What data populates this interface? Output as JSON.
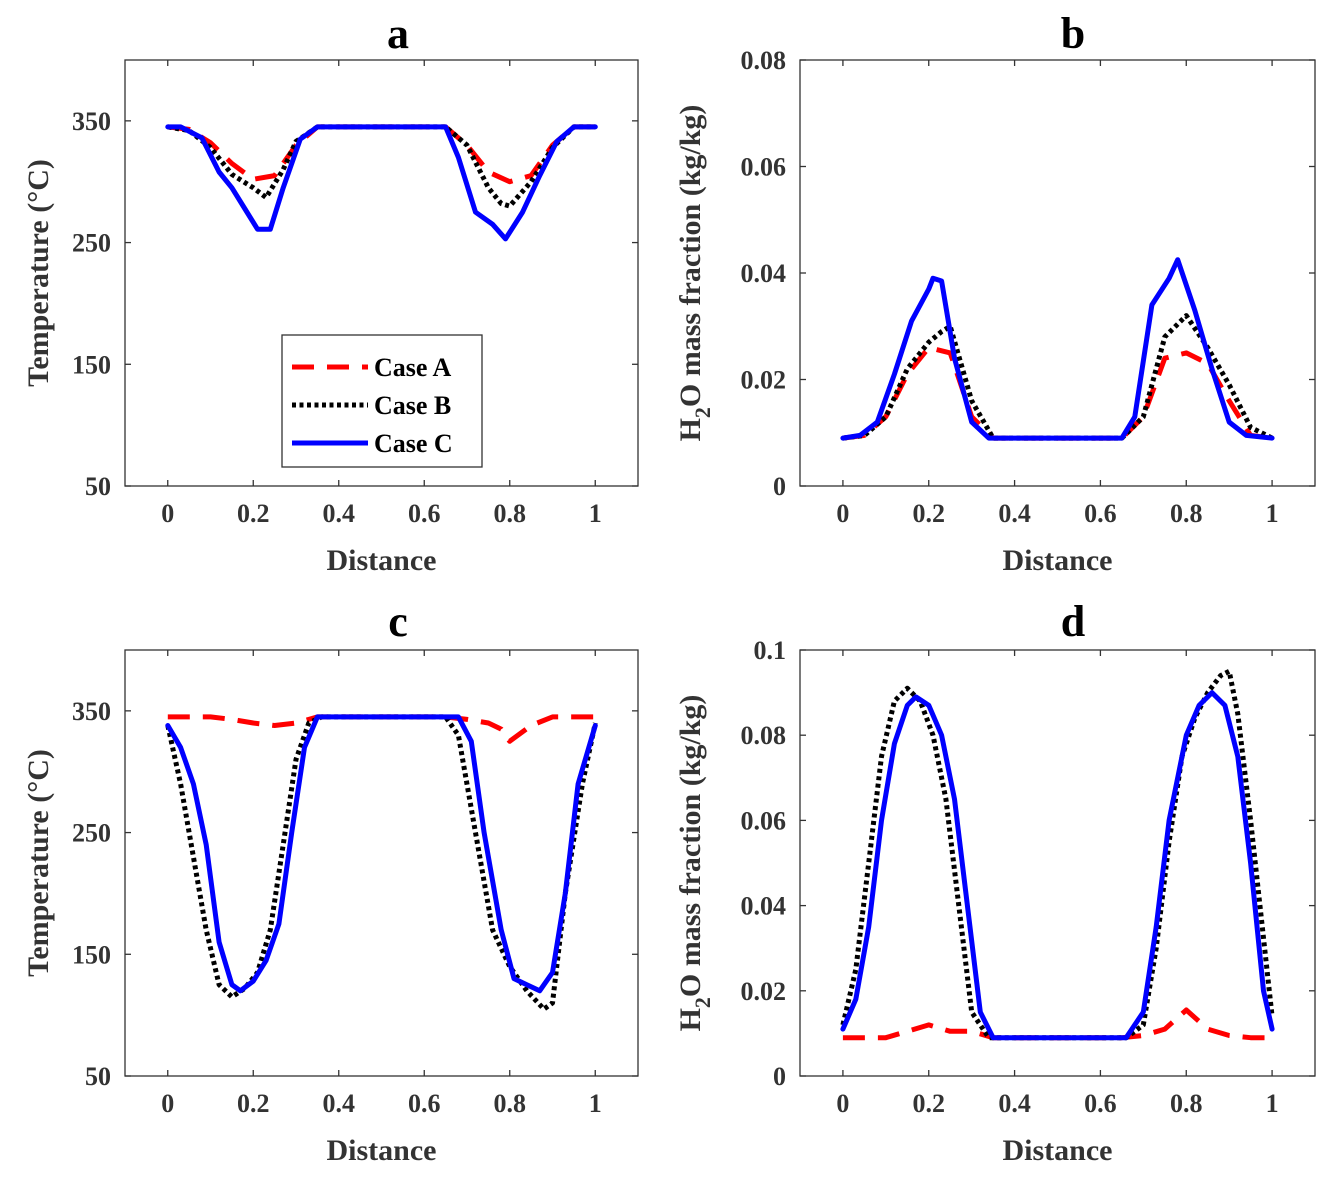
{
  "chart_data": [
    {
      "type": "line",
      "title": "a",
      "xlabel": "Distance",
      "ylabel": "Temperature (°C)",
      "xlim": [
        -0.1,
        1.1
      ],
      "ylim": [
        50,
        400
      ],
      "xticks": [
        "0",
        "0.2",
        "0.4",
        "0.6",
        "0.8",
        "1"
      ],
      "yticks": [
        "50",
        "150",
        "250",
        "350"
      ],
      "legend": {
        "placement": "inside-lower-left",
        "entries": [
          "Case A",
          "Case B",
          "Case C"
        ]
      },
      "series": [
        {
          "name": "Case A",
          "color": "#ff0000",
          "style": "dashed",
          "x": [
            0,
            0.05,
            0.1,
            0.15,
            0.2,
            0.25,
            0.3,
            0.35,
            0.65,
            0.7,
            0.75,
            0.8,
            0.85,
            0.9,
            0.95,
            1
          ],
          "y": [
            345,
            343,
            332,
            315,
            302,
            305,
            330,
            345,
            345,
            330,
            308,
            300,
            305,
            330,
            345,
            345
          ]
        },
        {
          "name": "Case B",
          "color": "#000000",
          "style": "dotted",
          "x": [
            0,
            0.05,
            0.1,
            0.15,
            0.2,
            0.23,
            0.27,
            0.3,
            0.35,
            0.65,
            0.7,
            0.75,
            0.78,
            0.8,
            0.85,
            0.9,
            0.95,
            1
          ],
          "y": [
            345,
            342,
            328,
            306,
            295,
            287,
            310,
            333,
            345,
            345,
            330,
            295,
            282,
            280,
            300,
            328,
            345,
            345
          ]
        },
        {
          "name": "Case C",
          "color": "#0000ff",
          "style": "solid",
          "x": [
            0,
            0.03,
            0.08,
            0.12,
            0.15,
            0.18,
            0.21,
            0.24,
            0.27,
            0.31,
            0.35,
            0.65,
            0.68,
            0.72,
            0.76,
            0.79,
            0.83,
            0.87,
            0.91,
            0.95,
            1
          ],
          "y": [
            345,
            345,
            336,
            308,
            295,
            278,
            261,
            261,
            295,
            335,
            345,
            345,
            320,
            275,
            265,
            253,
            275,
            305,
            333,
            345,
            345
          ]
        }
      ]
    },
    {
      "type": "line",
      "title": "b",
      "xlabel": "Distance",
      "ylabel": "H2O mass fraction (kg/kg)",
      "ylabel_parts": {
        "pre": "H",
        "sub": "2",
        "post": "O mass fraction (kg/kg)"
      },
      "xlim": [
        -0.1,
        1.1
      ],
      "ylim": [
        0,
        0.08
      ],
      "xticks": [
        "0",
        "0.2",
        "0.4",
        "0.6",
        "0.8",
        "1"
      ],
      "yticks": [
        "0",
        "0.02",
        "0.04",
        "0.06",
        "0.08"
      ],
      "series": [
        {
          "name": "Case A",
          "color": "#ff0000",
          "style": "dashed",
          "x": [
            0,
            0.05,
            0.1,
            0.15,
            0.2,
            0.25,
            0.3,
            0.35,
            0.65,
            0.7,
            0.75,
            0.8,
            0.85,
            0.9,
            0.95,
            1
          ],
          "y": [
            0.009,
            0.0095,
            0.013,
            0.021,
            0.026,
            0.025,
            0.013,
            0.009,
            0.009,
            0.013,
            0.024,
            0.025,
            0.023,
            0.016,
            0.0095,
            0.009
          ]
        },
        {
          "name": "Case B",
          "color": "#000000",
          "style": "dotted",
          "x": [
            0,
            0.05,
            0.1,
            0.15,
            0.2,
            0.23,
            0.25,
            0.3,
            0.35,
            0.65,
            0.7,
            0.75,
            0.8,
            0.85,
            0.9,
            0.95,
            1
          ],
          "y": [
            0.009,
            0.0095,
            0.013,
            0.022,
            0.027,
            0.029,
            0.03,
            0.016,
            0.009,
            0.009,
            0.013,
            0.028,
            0.032,
            0.026,
            0.019,
            0.011,
            0.009
          ]
        },
        {
          "name": "Case C",
          "color": "#0000ff",
          "style": "solid",
          "x": [
            0,
            0.04,
            0.08,
            0.12,
            0.16,
            0.2,
            0.21,
            0.23,
            0.26,
            0.3,
            0.34,
            0.65,
            0.68,
            0.72,
            0.76,
            0.78,
            0.82,
            0.86,
            0.9,
            0.94,
            1
          ],
          "y": [
            0.009,
            0.0095,
            0.012,
            0.021,
            0.031,
            0.037,
            0.039,
            0.0385,
            0.024,
            0.012,
            0.009,
            0.009,
            0.013,
            0.034,
            0.039,
            0.0425,
            0.033,
            0.022,
            0.012,
            0.0095,
            0.009
          ]
        }
      ]
    },
    {
      "type": "line",
      "title": "c",
      "xlabel": "Distance",
      "ylabel": "Temperature (°C)",
      "xlim": [
        -0.1,
        1.1
      ],
      "ylim": [
        50,
        400
      ],
      "xticks": [
        "0",
        "0.2",
        "0.4",
        "0.6",
        "0.8",
        "1"
      ],
      "yticks": [
        "50",
        "150",
        "250",
        "350"
      ],
      "series": [
        {
          "name": "Case A",
          "color": "#ff0000",
          "style": "dashed",
          "x": [
            0,
            0.05,
            0.1,
            0.15,
            0.2,
            0.25,
            0.3,
            0.35,
            0.65,
            0.7,
            0.75,
            0.78,
            0.8,
            0.85,
            0.9,
            0.95,
            1
          ],
          "y": [
            345,
            345,
            345,
            343,
            340,
            338,
            340,
            345,
            345,
            343,
            340,
            335,
            325,
            338,
            345,
            345,
            345
          ]
        },
        {
          "name": "Case B",
          "color": "#000000",
          "style": "dotted",
          "x": [
            0,
            0.03,
            0.06,
            0.09,
            0.12,
            0.15,
            0.18,
            0.21,
            0.24,
            0.27,
            0.3,
            0.33,
            0.36,
            0.65,
            0.68,
            0.72,
            0.76,
            0.8,
            0.84,
            0.88,
            0.9,
            0.93,
            0.97,
            1
          ],
          "y": [
            338,
            290,
            230,
            170,
            125,
            115,
            122,
            135,
            170,
            240,
            310,
            340,
            345,
            345,
            330,
            250,
            170,
            140,
            120,
            105,
            110,
            200,
            290,
            340
          ]
        },
        {
          "name": "Case C",
          "color": "#0000ff",
          "style": "solid",
          "x": [
            0,
            0.03,
            0.06,
            0.09,
            0.12,
            0.15,
            0.17,
            0.2,
            0.23,
            0.26,
            0.29,
            0.32,
            0.35,
            0.68,
            0.71,
            0.74,
            0.78,
            0.81,
            0.84,
            0.87,
            0.9,
            0.93,
            0.96,
            1
          ],
          "y": [
            338,
            320,
            290,
            240,
            160,
            125,
            120,
            128,
            145,
            175,
            250,
            320,
            345,
            345,
            325,
            250,
            170,
            130,
            125,
            120,
            135,
            200,
            290,
            338
          ]
        }
      ]
    },
    {
      "type": "line",
      "title": "d",
      "xlabel": "Distance",
      "ylabel": "H2O mass fraction (kg/kg)",
      "ylabel_parts": {
        "pre": "H",
        "sub": "2",
        "post": "O mass fraction (kg/kg)"
      },
      "xlim": [
        -0.1,
        1.1
      ],
      "ylim": [
        0,
        0.1
      ],
      "xticks": [
        "0",
        "0.2",
        "0.4",
        "0.6",
        "0.8",
        "1"
      ],
      "yticks": [
        "0",
        "0.02",
        "0.04",
        "0.06",
        "0.08",
        "0.1"
      ],
      "series": [
        {
          "name": "Case A",
          "color": "#ff0000",
          "style": "dashed",
          "x": [
            0,
            0.05,
            0.1,
            0.15,
            0.2,
            0.25,
            0.3,
            0.35,
            0.65,
            0.7,
            0.75,
            0.8,
            0.85,
            0.9,
            0.95,
            1
          ],
          "y": [
            0.009,
            0.009,
            0.009,
            0.0105,
            0.012,
            0.0105,
            0.0105,
            0.009,
            0.009,
            0.0095,
            0.011,
            0.0155,
            0.011,
            0.0095,
            0.009,
            0.009
          ]
        },
        {
          "name": "Case B",
          "color": "#000000",
          "style": "dotted",
          "x": [
            0,
            0.03,
            0.06,
            0.09,
            0.12,
            0.15,
            0.18,
            0.21,
            0.24,
            0.27,
            0.3,
            0.34,
            0.66,
            0.7,
            0.73,
            0.76,
            0.79,
            0.82,
            0.85,
            0.88,
            0.9,
            0.92,
            0.95,
            1
          ],
          "y": [
            0.012,
            0.025,
            0.05,
            0.075,
            0.088,
            0.091,
            0.088,
            0.08,
            0.065,
            0.04,
            0.015,
            0.009,
            0.009,
            0.012,
            0.03,
            0.055,
            0.075,
            0.084,
            0.09,
            0.094,
            0.095,
            0.085,
            0.06,
            0.014
          ]
        },
        {
          "name": "Case C",
          "color": "#0000ff",
          "style": "solid",
          "x": [
            0,
            0.03,
            0.06,
            0.09,
            0.12,
            0.15,
            0.17,
            0.2,
            0.23,
            0.26,
            0.29,
            0.32,
            0.35,
            0.66,
            0.7,
            0.73,
            0.76,
            0.8,
            0.83,
            0.86,
            0.89,
            0.92,
            0.95,
            0.98,
            1
          ],
          "y": [
            0.011,
            0.018,
            0.035,
            0.06,
            0.078,
            0.087,
            0.089,
            0.087,
            0.08,
            0.065,
            0.04,
            0.015,
            0.009,
            0.009,
            0.015,
            0.035,
            0.06,
            0.08,
            0.087,
            0.09,
            0.087,
            0.075,
            0.05,
            0.02,
            0.011
          ]
        }
      ]
    }
  ]
}
